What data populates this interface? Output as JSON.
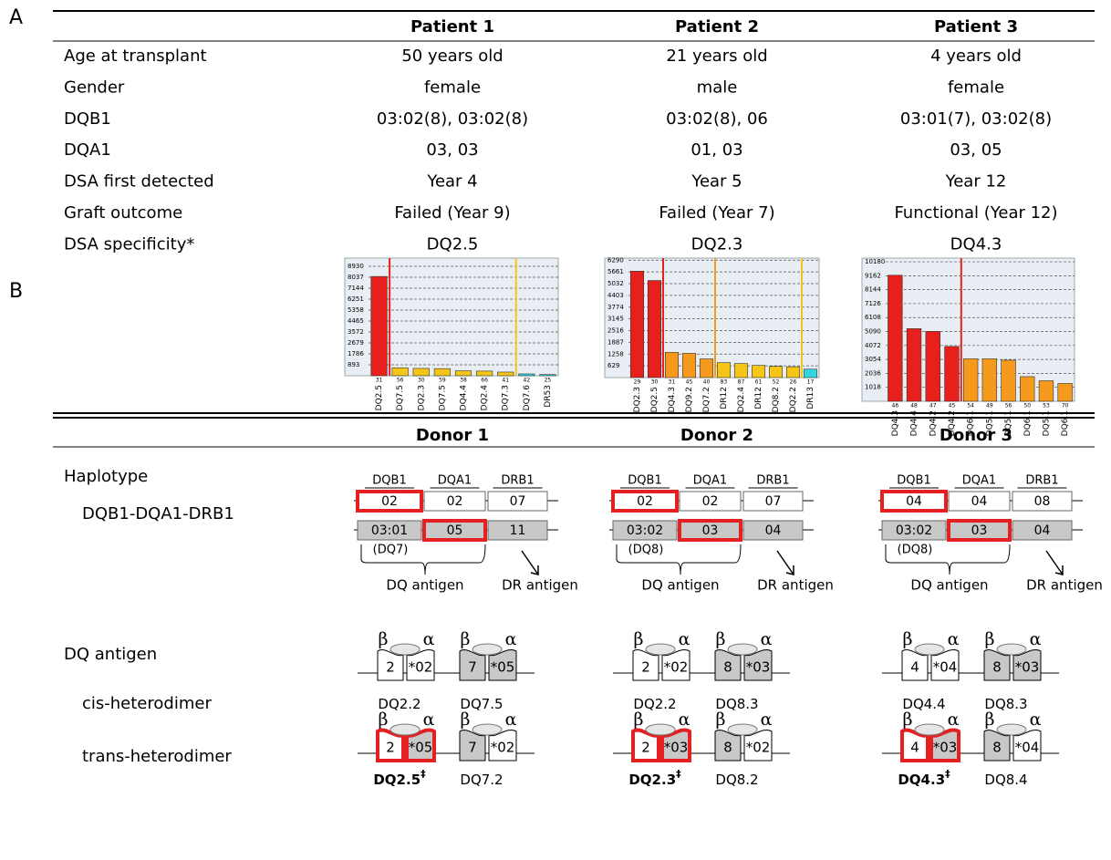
{
  "panel_labels": [
    "A",
    "B"
  ],
  "table": {
    "columns": [
      "Patient 1",
      "Patient 2",
      "Patient 3"
    ],
    "rows": [
      {
        "label": "Age at transplant",
        "cells": [
          "50 years old",
          "21 years old",
          "4 years old"
        ]
      },
      {
        "label": "Gender",
        "cells": [
          "female",
          "male",
          "female"
        ]
      },
      {
        "label": "DQB1",
        "cells": [
          "03:02(8), 03:02(8)",
          "03:02(8), 06",
          "03:01(7), 03:02(8)"
        ]
      },
      {
        "label": "DQA1",
        "cells": [
          "03, 03",
          "01, 03",
          "03, 05"
        ]
      },
      {
        "label": "DSA first detected",
        "cells": [
          "Year 4",
          "Year 5",
          "Year 12"
        ]
      },
      {
        "label": "Graft outcome",
        "cells": [
          "Failed (Year 9)",
          "Failed (Year 7)",
          "Functional (Year 12)"
        ]
      },
      {
        "label": "DSA specificity*",
        "cells": [
          "DQ2.5",
          "DQ2.3",
          "DQ4.3"
        ]
      }
    ]
  },
  "chart_data": [
    {
      "type": "bar",
      "categories": [
        "DQ2.5",
        "DQ7.5",
        "DQ2.3",
        "DQ7.5",
        "DQ4.4",
        "DQ2.4",
        "DQ7.3",
        "DQ7.6",
        "DR53"
      ],
      "values": [
        8100,
        650,
        600,
        580,
        400,
        380,
        300,
        150,
        100
      ],
      "colors": [
        "#e8201c",
        "#f5c518",
        "#f5c518",
        "#f5c518",
        "#f5c518",
        "#f5c518",
        "#f5c518",
        "#33d6e0",
        "#33d6e0"
      ],
      "bead_ids": [
        "31",
        "56",
        "30",
        "59",
        "38",
        "66",
        "41",
        "42",
        "25"
      ],
      "ylim": [
        0,
        9600
      ],
      "yticks": [
        893,
        1786,
        2679,
        3572,
        4465,
        5358,
        6251,
        7144,
        8037,
        8930
      ],
      "grid": true
    },
    {
      "type": "bar",
      "categories": [
        "DQ2.3",
        "DQ2.5",
        "DQ4.3",
        "DQ9.2",
        "DQ7.2",
        "DR12",
        "DQ2.4",
        "DR12",
        "DQ8.2",
        "DQ2.2",
        "DR13"
      ],
      "values": [
        5700,
        5200,
        1350,
        1300,
        1000,
        800,
        750,
        650,
        600,
        580,
        450
      ],
      "colors": [
        "#e8201c",
        "#e8201c",
        "#f59a1c",
        "#f59a1c",
        "#f59a1c",
        "#f5c518",
        "#f5c518",
        "#f5c518",
        "#f5c518",
        "#f5c518",
        "#33d6e0"
      ],
      "bead_ids": [
        "29",
        "30",
        "31",
        "45",
        "40",
        "83",
        "87",
        "61",
        "52",
        "26",
        "17"
      ],
      "ylim": [
        0,
        6400
      ],
      "yticks": [
        629,
        1258,
        1887,
        2516,
        3145,
        3774,
        4403,
        5032,
        5661,
        6290
      ],
      "grid": true
    },
    {
      "type": "bar",
      "categories": [
        "DQ4.3",
        "DQ4.4",
        "DQ4.2",
        "DQ4.2",
        "DQ6.1",
        "DQ5.1",
        "DQ5.1",
        "DQ6.1",
        "DQ5.1",
        "DQ6.1"
      ],
      "values": [
        9200,
        5300,
        5100,
        4000,
        3100,
        3100,
        3000,
        1800,
        1500,
        1300
      ],
      "colors": [
        "#e8201c",
        "#e8201c",
        "#e8201c",
        "#e8201c",
        "#f59a1c",
        "#f59a1c",
        "#f59a1c",
        "#f59a1c",
        "#f59a1c",
        "#f59a1c"
      ],
      "bead_ids": [
        "46",
        "48",
        "47",
        "45",
        "54",
        "49",
        "56",
        "50",
        "53",
        "70"
      ],
      "ylim": [
        0,
        10450
      ],
      "yticks": [
        1018,
        2036,
        3054,
        4072,
        5090,
        6108,
        7126,
        8144,
        9162,
        10180
      ],
      "grid": true
    }
  ],
  "donors": {
    "columns": [
      "Donor 1",
      "Donor 2",
      "Donor 3"
    ],
    "haplotype_label": "Haplotype",
    "haplotype_order": "DQB1-DQA1-DRB1",
    "genes": [
      "DQB1",
      "DQA1",
      "DRB1"
    ],
    "dq_antigen_label": "DQ antigen",
    "dr_antigen_label": "DR antigen",
    "cis_label": "cis-heterodimer",
    "trans_label": "trans-heterodimer",
    "beta": "β",
    "alpha": "α",
    "items": [
      {
        "hap1": [
          "02",
          "02",
          "07"
        ],
        "hap2": [
          "03:01",
          "05",
          "11"
        ],
        "hap2_antigen": "(DQ7)",
        "cis": [
          {
            "beta": "2",
            "alpha": "*02",
            "label": "DQ2.2"
          },
          {
            "beta": "7",
            "alpha": "*05",
            "label": "DQ7.5"
          }
        ],
        "trans": [
          {
            "beta": "2",
            "alpha": "*05",
            "label": "DQ2.5",
            "mark": "‡"
          },
          {
            "beta": "7",
            "alpha": "*02",
            "label": "DQ7.2"
          }
        ]
      },
      {
        "hap1": [
          "02",
          "02",
          "07"
        ],
        "hap2": [
          "03:02",
          "03",
          "04"
        ],
        "hap2_antigen": "(DQ8)",
        "cis": [
          {
            "beta": "2",
            "alpha": "*02",
            "label": "DQ2.2"
          },
          {
            "beta": "8",
            "alpha": "*03",
            "label": "DQ8.3"
          }
        ],
        "trans": [
          {
            "beta": "2",
            "alpha": "*03",
            "label": "DQ2.3",
            "mark": "‡"
          },
          {
            "beta": "8",
            "alpha": "*02",
            "label": "DQ8.2"
          }
        ]
      },
      {
        "hap1": [
          "04",
          "04",
          "08"
        ],
        "hap2": [
          "03:02",
          "03",
          "04"
        ],
        "hap2_antigen": "(DQ8)",
        "cis": [
          {
            "beta": "4",
            "alpha": "*04",
            "label": "DQ4.4"
          },
          {
            "beta": "8",
            "alpha": "*03",
            "label": "DQ8.3"
          }
        ],
        "trans": [
          {
            "beta": "4",
            "alpha": "*03",
            "label": "DQ4.3",
            "mark": "‡"
          },
          {
            "beta": "8",
            "alpha": "*04",
            "label": "DQ8.4"
          }
        ]
      }
    ]
  }
}
